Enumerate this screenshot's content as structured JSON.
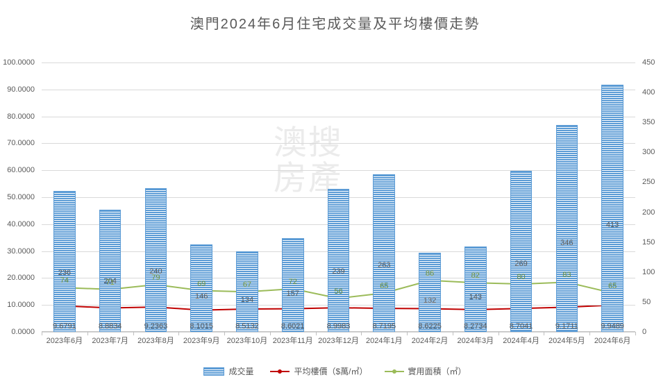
{
  "title": "澳門2024年6月住宅成交量及平均樓價走勢",
  "watermark": "澳搜\n房產",
  "chart": {
    "type": "combo-bar-line",
    "background_color": "#ffffff",
    "grid_color": "#d9d9d9",
    "axis_color": "#bfbfbf",
    "text_color": "#595959",
    "title_fontsize": 20,
    "label_fontsize": 11,
    "categories": [
      "2023年6月",
      "2023年7月",
      "2023年8月",
      "2023年9月",
      "2023年10月",
      "2023年11月",
      "2023年12月",
      "2024年1月",
      "2024年2月",
      "2024年3月",
      "2024年4月",
      "2024年5月",
      "2024年6月"
    ],
    "left_axis": {
      "min": 0,
      "max": 100,
      "step": 10,
      "decimals": 4
    },
    "right_axis": {
      "min": 0,
      "max": 450,
      "step": 50,
      "decimals": 0
    },
    "series": {
      "bars": {
        "label": "成交量",
        "axis": "left",
        "color": "#5b9bd5",
        "values": [
          52.4,
          45.3,
          53.3,
          32.4,
          29.8,
          34.9,
          53.1,
          58.4,
          29.3,
          31.8,
          59.8,
          76.9,
          91.8
        ],
        "data_labels": [
          236,
          204,
          240,
          146,
          134,
          157,
          239,
          263,
          132,
          143,
          269,
          346,
          413
        ],
        "xval_labels": [
          "9.6791",
          "8.8834",
          "9.2363",
          "8.1015",
          "8.5132",
          "8.6021",
          "8.9983",
          "8.7195",
          "8.6225",
          "8.2734",
          "8.7041",
          "9.1711",
          "9.9489"
        ],
        "bar_width_ratio": 0.48
      },
      "price_line": {
        "label": "平均樓價（$萬/㎡）",
        "axis": "left",
        "color": "#c00000",
        "line_width": 2,
        "marker": "circle",
        "marker_size": 4,
        "values": [
          9.6791,
          8.8834,
          9.2363,
          8.1015,
          8.5132,
          8.6021,
          8.9983,
          8.7195,
          8.6225,
          8.2734,
          8.7041,
          9.1711,
          9.9489
        ]
      },
      "area_line": {
        "label": "實用面積（㎡）",
        "axis": "right",
        "color": "#9bbb59",
        "line_width": 2,
        "marker": "circle",
        "marker_size": 4,
        "values": [
          74,
          71,
          79,
          69,
          67,
          72,
          56,
          65,
          86,
          82,
          80,
          83,
          65
        ],
        "point_labels": [
          "74",
          "71",
          "79",
          "69",
          "67",
          "72",
          "56",
          "65",
          "86",
          "82",
          "80",
          "83",
          "65"
        ]
      }
    }
  },
  "legend": {
    "items": [
      {
        "key": "bars",
        "label": "成交量"
      },
      {
        "key": "price_line",
        "label": "平均樓價（$萬/㎡）"
      },
      {
        "key": "area_line",
        "label": "實用面積（㎡）"
      }
    ]
  }
}
